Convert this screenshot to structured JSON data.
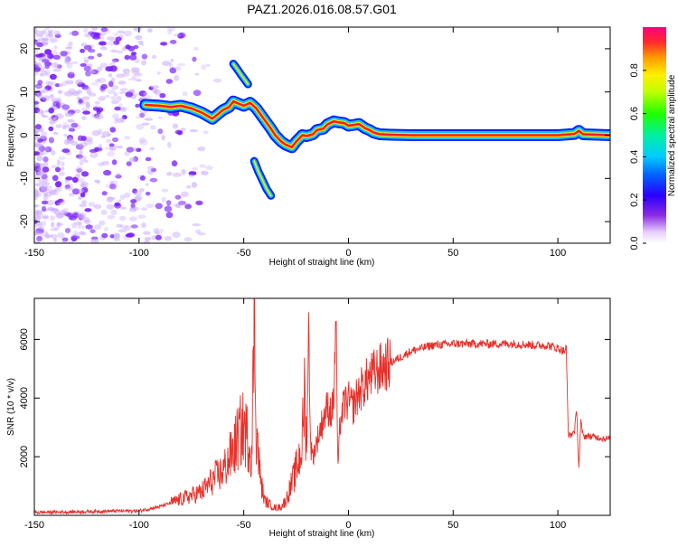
{
  "title": "PAZ1.2026.016.08.57.G01",
  "colors": {
    "snr_line": "#e8302a",
    "track_core": "#ff1a1a",
    "track_mid": "#f0e000",
    "track_outer": "#00c8ff",
    "track_edge": "#0020ff",
    "noise": "#7a20ff"
  },
  "chart_data": [
    {
      "type": "heatmap",
      "name": "spectrogram",
      "xlabel": "Height of straight line (km)",
      "ylabel": "Frequency (Hz)",
      "xlim": [
        -150,
        125
      ],
      "ylim": [
        -25,
        25
      ],
      "xticks": [
        -150,
        -100,
        -50,
        0,
        50,
        100
      ],
      "yticks": [
        -20,
        -10,
        0,
        10,
        20
      ],
      "tick_labels_x": [
        "-150",
        "-100",
        "-50",
        "0",
        "50",
        "100"
      ],
      "tick_labels_y": [
        "-20",
        "-10",
        "0",
        "10",
        "20"
      ],
      "main_track": {
        "x": [
          -97,
          -90,
          -85,
          -80,
          -75,
          -70,
          -65,
          -60,
          -57,
          -55,
          -50,
          -47,
          -44,
          -40,
          -37,
          -35,
          -32,
          -30,
          -27,
          -25,
          -22,
          -20,
          -17,
          -15,
          -12,
          -10,
          -7,
          -5,
          -2,
          0,
          3,
          5,
          8,
          10,
          12,
          15,
          20,
          30,
          40,
          60,
          80,
          100,
          108,
          110,
          112,
          125
        ],
        "y": [
          7,
          6.8,
          6.5,
          6.8,
          6.2,
          5.2,
          3.8,
          5.8,
          6.5,
          7.8,
          6.8,
          7.5,
          6.2,
          3.5,
          1.5,
          0,
          -1.5,
          -2.2,
          -2.8,
          -1.5,
          0,
          -0.2,
          0.2,
          1.2,
          1.5,
          2.5,
          3.2,
          3.0,
          2.8,
          2.2,
          2.4,
          2.6,
          1.6,
          1.2,
          0.6,
          0.2,
          0.1,
          0.0,
          0.0,
          0.0,
          0.0,
          0.0,
          0.3,
          1.0,
          0.2,
          0.0
        ]
      },
      "branches": [
        {
          "x": [
            -55,
            -53,
            -51,
            -49,
            -48
          ],
          "y": [
            16.5,
            15.2,
            13.8,
            12.5,
            11.8
          ]
        },
        {
          "x": [
            -45,
            -43,
            -41,
            -39,
            -37
          ],
          "y": [
            -6,
            -8.5,
            -10.5,
            -12.5,
            -14
          ]
        }
      ],
      "noise_region": {
        "x": [
          -150,
          -95
        ],
        "y": [
          -25,
          25
        ]
      },
      "colorbar": {
        "label": "Normalized spectral amplitude",
        "range": [
          0,
          1
        ],
        "ticks": [
          "0.0",
          "0.2",
          "0.4",
          "0.6",
          "0.8"
        ]
      }
    },
    {
      "type": "line",
      "name": "snr",
      "xlabel": "Height of straight line (km)",
      "ylabel": "SNR (10 * v/v)",
      "xlim": [
        -150,
        125
      ],
      "ylim": [
        0,
        7400
      ],
      "xticks": [
        -150,
        -100,
        -50,
        0,
        50,
        100
      ],
      "yticks": [
        2000,
        4000,
        6000
      ],
      "tick_labels_x": [
        "-150",
        "-100",
        "-50",
        "0",
        "50",
        "100"
      ],
      "tick_labels_y": [
        "2000",
        "4000",
        "6000"
      ],
      "series": [
        {
          "name": "SNR",
          "x": [
            -150,
            -130,
            -110,
            -100,
            -90,
            -80,
            -70,
            -65,
            -60,
            -55,
            -52,
            -50,
            -48,
            -46,
            -45,
            -44,
            -42,
            -40,
            -38,
            -35,
            -32,
            -30,
            -28,
            -26,
            -24,
            -22,
            -21,
            -20,
            -19,
            -18,
            -17,
            -16,
            -14,
            -12,
            -10,
            -8,
            -7,
            -6,
            -5,
            -4,
            -2,
            0,
            2,
            5,
            10,
            15,
            20,
            25,
            30,
            35,
            40,
            50,
            60,
            70,
            80,
            90,
            95,
            100,
            103,
            104,
            105,
            106,
            108,
            109,
            110,
            111,
            112,
            115,
            120,
            125
          ],
          "y": [
            100,
            120,
            150,
            150,
            300,
            550,
            800,
            1200,
            1500,
            2200,
            2800,
            3000,
            2600,
            2200,
            7400,
            3000,
            1200,
            500,
            400,
            250,
            300,
            500,
            900,
            1300,
            1800,
            2500,
            4200,
            2200,
            6300,
            2300,
            2000,
            2300,
            2800,
            3300,
            3700,
            3500,
            4000,
            6800,
            1500,
            3200,
            3800,
            3900,
            3700,
            4200,
            4700,
            5000,
            5200,
            5400,
            5600,
            5700,
            5800,
            5850,
            5850,
            5850,
            5850,
            5800,
            5800,
            5700,
            5600,
            5700,
            2800,
            2700,
            2900,
            3600,
            1600,
            3200,
            2700,
            2700,
            2650,
            2600
          ]
        }
      ]
    }
  ]
}
